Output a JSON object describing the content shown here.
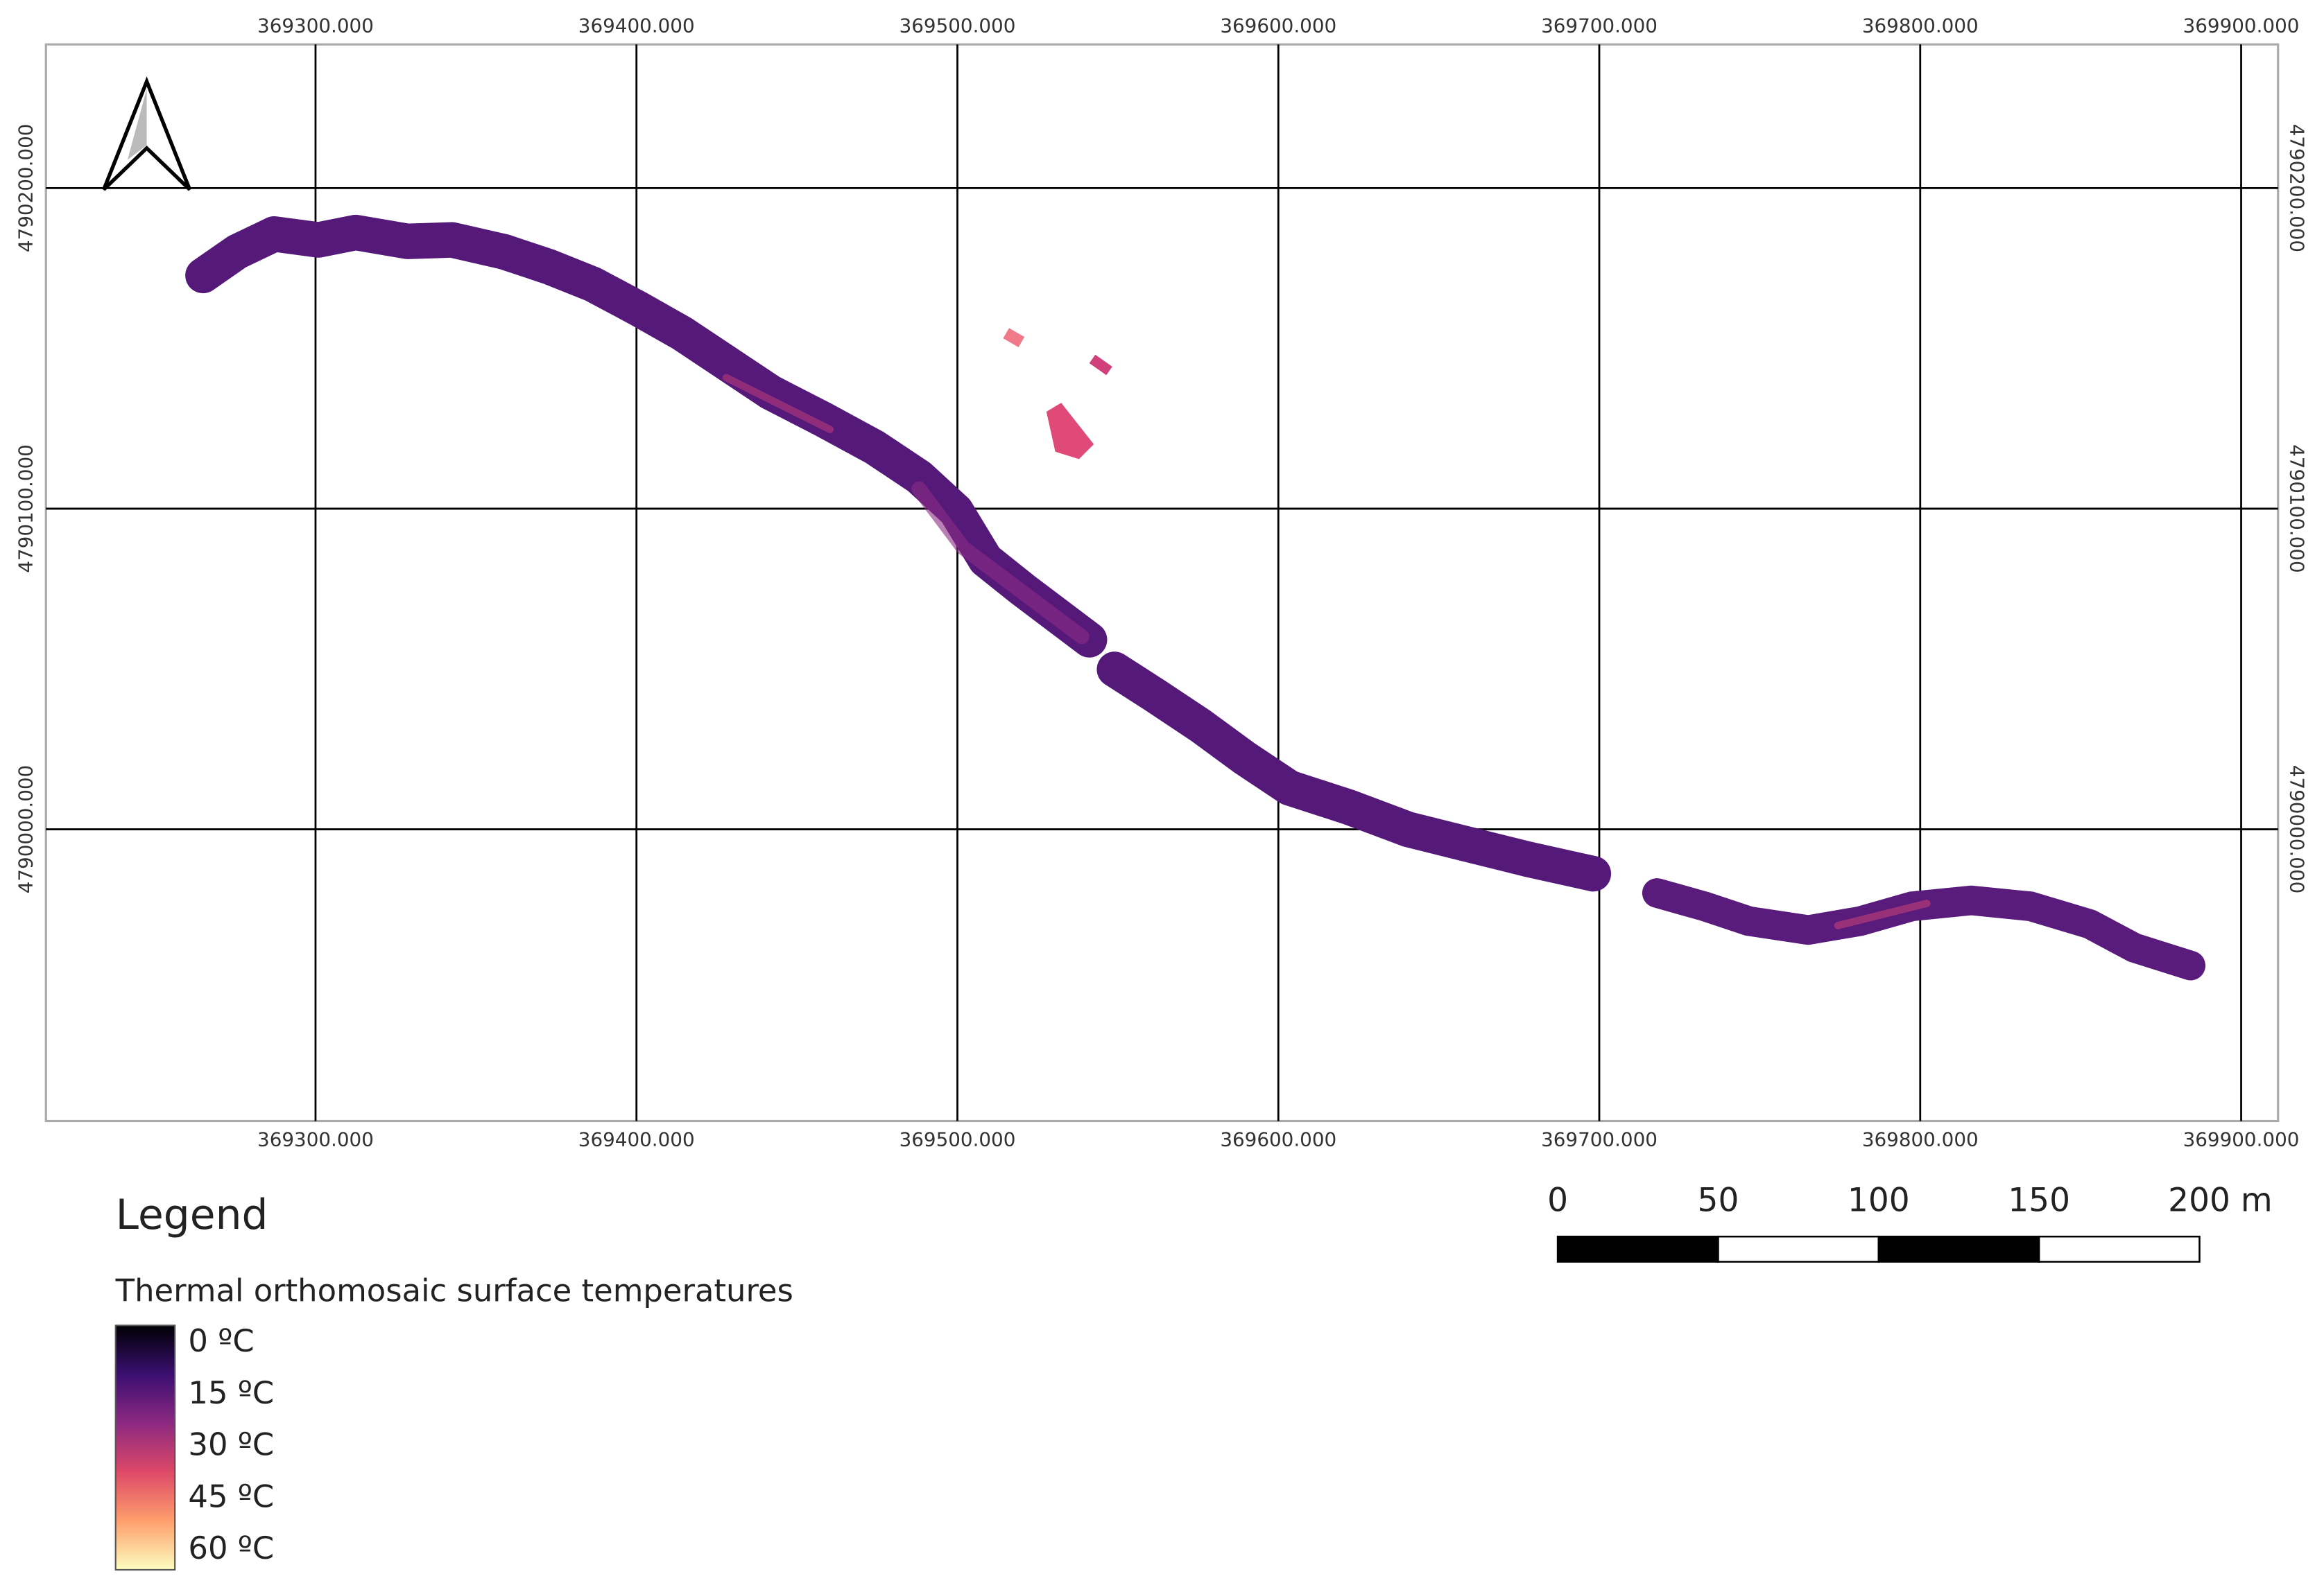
{
  "map": {
    "xlim": [
      369216,
      369911.5
    ],
    "ylim": [
      4789909,
      4790244.8
    ],
    "x_ticks": [
      {
        "value": 369300,
        "label": "369300.000"
      },
      {
        "value": 369400,
        "label": "369400.000"
      },
      {
        "value": 369500,
        "label": "369500.000"
      },
      {
        "value": 369600,
        "label": "369600.000"
      },
      {
        "value": 369700,
        "label": "369700.000"
      },
      {
        "value": 369800,
        "label": "369800.000"
      },
      {
        "value": 369900,
        "label": "369900.000"
      }
    ],
    "y_ticks": [
      {
        "value": 4790200,
        "label": "4790200.000"
      },
      {
        "value": 4790100,
        "label": "4790100.000"
      },
      {
        "value": 4790000,
        "label": "4790000.000"
      }
    ]
  },
  "legend": {
    "title": "Legend",
    "layer": "Thermal orthomosaic surface temperatures",
    "items": [
      "0 ºC",
      "15 ºC",
      "30 ºC",
      "45 ºC",
      "60 ºC"
    ],
    "colors": [
      "#000004",
      "#3b0f70",
      "#8c2981",
      "#de4968",
      "#fe9f6d",
      "#fcfdbf"
    ]
  },
  "scale_bar": {
    "labels": [
      "0",
      "50",
      "100",
      "150",
      "200 m"
    ]
  }
}
